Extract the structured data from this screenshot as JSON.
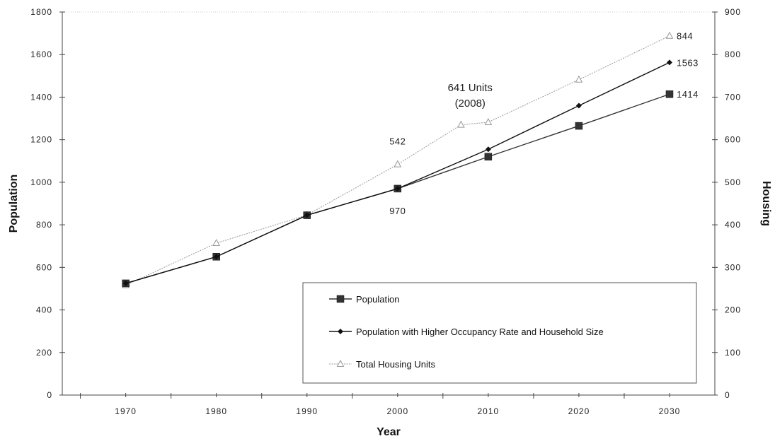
{
  "chart_data": {
    "type": "line",
    "xlabel": "Year",
    "ylabel_left": "Population",
    "ylabel_right": "Housing",
    "x_ticks": [
      "1970",
      "1980",
      "1990",
      "2000",
      "2010",
      "2020",
      "2030"
    ],
    "y_left_ticks": [
      "0",
      "200",
      "400",
      "600",
      "800",
      "1000",
      "1200",
      "1400",
      "1600",
      "1800"
    ],
    "y_right_ticks": [
      "0",
      "100",
      "200",
      "300",
      "400",
      "500",
      "600",
      "700",
      "800",
      "900"
    ],
    "xlim": [
      1963,
      2035
    ],
    "ylim_left": [
      0,
      1800
    ],
    "ylim_right": [
      0,
      900
    ],
    "grid": false,
    "legend_position": "bottom-right",
    "series": [
      {
        "name": "Population",
        "axis": "left",
        "marker": "square",
        "color": "#333333",
        "x": [
          1970,
          1980,
          1990,
          2000,
          2010,
          2020,
          2030
        ],
        "y": [
          525,
          650,
          845,
          970,
          1120,
          1265,
          1414
        ]
      },
      {
        "name": "Population with Higher Occupancy Rate and Household Size",
        "axis": "left",
        "marker": "diamond",
        "color": "#111111",
        "x": [
          1970,
          1980,
          1990,
          2000,
          2010,
          2020,
          2030
        ],
        "y": [
          525,
          650,
          845,
          970,
          1155,
          1360,
          1563
        ]
      },
      {
        "name": "Total Housing Units",
        "axis": "right",
        "marker": "triangle",
        "color": "#999999",
        "x": [
          1970,
          1980,
          1990,
          2000,
          2007,
          2010,
          2020,
          2030
        ],
        "y": [
          258,
          357,
          423,
          542,
          635,
          641,
          741,
          844
        ]
      }
    ],
    "annotations": [
      {
        "text": "542",
        "x": 2000,
        "y": 542,
        "axis": "right",
        "pos": "above"
      },
      {
        "text": "970",
        "x": 2000,
        "y": 970,
        "axis": "left",
        "pos": "below"
      },
      {
        "text": "641 Units",
        "x": 2008,
        "y": 641,
        "axis": "right",
        "pos": "above-line1"
      },
      {
        "text": "(2008)",
        "x": 2008,
        "y": 641,
        "axis": "right",
        "pos": "above-line2"
      },
      {
        "text": "844",
        "x": 2030,
        "y": 844,
        "axis": "right",
        "pos": "right"
      },
      {
        "text": "1563",
        "x": 2030,
        "y": 1563,
        "axis": "left",
        "pos": "right"
      },
      {
        "text": "1414",
        "x": 2030,
        "y": 1414,
        "axis": "left",
        "pos": "right"
      }
    ]
  }
}
